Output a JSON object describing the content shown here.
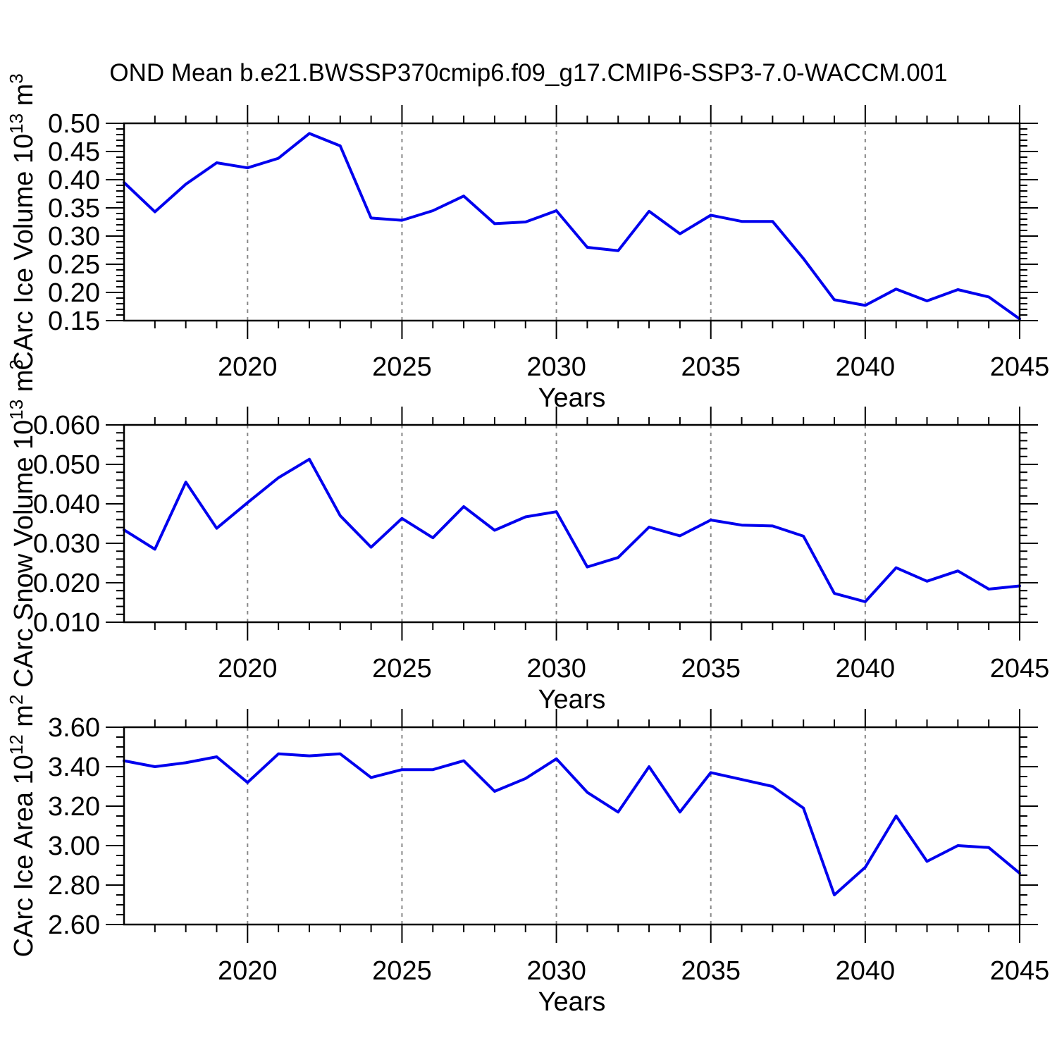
{
  "title": "OND Mean b.e21.BWSSP370cmip6.f09_g17.CMIP6-SSP3-7.0-WACCM.001",
  "colors": {
    "line": "#0000EE",
    "axis": "#000000",
    "grid": "#888888",
    "background": "#FFFFFF"
  },
  "x_axis": {
    "label": "Years",
    "range": [
      2016,
      2045
    ],
    "years": [
      2016,
      2017,
      2018,
      2019,
      2020,
      2021,
      2022,
      2023,
      2024,
      2025,
      2026,
      2027,
      2028,
      2029,
      2030,
      2031,
      2032,
      2033,
      2034,
      2035,
      2036,
      2037,
      2038,
      2039,
      2040,
      2041,
      2042,
      2043,
      2044,
      2045
    ],
    "major_ticks": [
      2020,
      2025,
      2030,
      2035,
      2040,
      2045
    ],
    "major_tick_labels": [
      "2020",
      "2025",
      "2030",
      "2035",
      "2040",
      "2045"
    ],
    "gridline_years": [
      2020,
      2025,
      2030,
      2035,
      2040
    ]
  },
  "chart_data": [
    {
      "type": "line",
      "id": "ice-volume",
      "ylabel_text": "CArc Ice Volume 10^13 m^3",
      "ylabel_parts": [
        {
          "t": "CArc Ice Volume 10"
        },
        {
          "t": "13",
          "sup": true
        },
        {
          "t": " m"
        },
        {
          "t": "3",
          "sup": true
        }
      ],
      "ylim": [
        0.15,
        0.5
      ],
      "ytick_values": [
        0.15,
        0.2,
        0.25,
        0.3,
        0.35,
        0.4,
        0.45,
        0.5
      ],
      "ytick_labels": [
        "0.15",
        "0.20",
        "0.25",
        "0.30",
        "0.35",
        "0.40",
        "0.45",
        "0.50"
      ],
      "yminor_step": 0.01,
      "values": [
        0.395,
        0.343,
        0.392,
        0.43,
        0.421,
        0.438,
        0.482,
        0.46,
        0.332,
        0.328,
        0.345,
        0.371,
        0.322,
        0.325,
        0.345,
        0.28,
        0.274,
        0.344,
        0.304,
        0.337,
        0.326,
        0.326,
        0.26,
        0.187,
        0.177,
        0.206,
        0.185,
        0.205,
        0.192,
        0.153
      ]
    },
    {
      "type": "line",
      "id": "snow-volume",
      "ylabel_text": "CArc Snow Volume 10^13 m^3",
      "ylabel_parts": [
        {
          "t": "CArc Snow Volume 10"
        },
        {
          "t": "13",
          "sup": true
        },
        {
          "t": " m"
        },
        {
          "t": "3",
          "sup": true
        }
      ],
      "ylim": [
        0.01,
        0.06
      ],
      "ytick_values": [
        0.01,
        0.02,
        0.03,
        0.04,
        0.05,
        0.06
      ],
      "ytick_labels": [
        "0.010",
        "0.020",
        "0.030",
        "0.040",
        "0.050",
        "0.060"
      ],
      "yminor_step": 0.002,
      "values": [
        0.0334,
        0.0285,
        0.0455,
        0.0338,
        0.0403,
        0.0466,
        0.0513,
        0.037,
        0.029,
        0.0363,
        0.0314,
        0.0393,
        0.0333,
        0.0367,
        0.038,
        0.024,
        0.0264,
        0.0341,
        0.0319,
        0.0359,
        0.0346,
        0.0344,
        0.0318,
        0.0173,
        0.0152,
        0.0238,
        0.0204,
        0.023,
        0.0184,
        0.0192
      ]
    },
    {
      "type": "line",
      "id": "ice-area",
      "ylabel_text": "CArc Ice Area 10^12 m^2",
      "ylabel_parts": [
        {
          "t": "CArc Ice Area 10"
        },
        {
          "t": "12",
          "sup": true
        },
        {
          "t": " m"
        },
        {
          "t": "2",
          "sup": true
        }
      ],
      "ylim": [
        2.6,
        3.6
      ],
      "ytick_values": [
        2.6,
        2.8,
        3.0,
        3.2,
        3.4,
        3.6
      ],
      "ytick_labels": [
        "2.60",
        "2.80",
        "3.00",
        "3.20",
        "3.40",
        "3.60"
      ],
      "yminor_step": 0.05,
      "values": [
        3.43,
        3.4,
        3.42,
        3.45,
        3.32,
        3.465,
        3.455,
        3.465,
        3.345,
        3.385,
        3.385,
        3.43,
        3.275,
        3.34,
        3.44,
        3.27,
        3.17,
        3.4,
        3.17,
        3.37,
        3.335,
        3.3,
        3.19,
        2.75,
        2.89,
        3.15,
        2.92,
        3.0,
        2.99,
        2.86
      ]
    }
  ]
}
